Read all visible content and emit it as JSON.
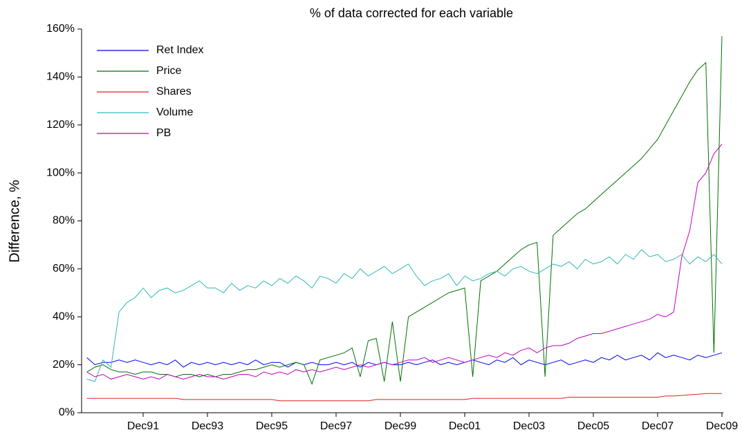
{
  "chart_data": {
    "type": "line",
    "title": "% of data corrected for each variable",
    "y_label": "Difference, %",
    "categories": [
      null,
      null,
      null,
      null,
      null,
      null,
      null,
      "Dec91",
      null,
      null,
      null,
      null,
      null,
      null,
      null,
      "Dec93",
      null,
      null,
      null,
      null,
      null,
      null,
      null,
      "Dec95",
      null,
      null,
      null,
      null,
      null,
      null,
      null,
      "Dec97",
      null,
      null,
      null,
      null,
      null,
      null,
      null,
      "Dec99",
      null,
      null,
      null,
      null,
      null,
      null,
      null,
      "Dec01",
      null,
      null,
      null,
      null,
      null,
      null,
      null,
      "Dec03",
      null,
      null,
      null,
      null,
      null,
      null,
      null,
      "Dec05",
      null,
      null,
      null,
      null,
      null,
      null,
      null,
      "Dec07",
      null,
      null,
      null,
      null,
      null,
      null,
      null,
      "Dec09"
    ],
    "ylim": [
      0,
      160
    ],
    "yticks": [
      {
        "value": 0,
        "label": "0%"
      },
      {
        "value": 20,
        "label": "20%"
      },
      {
        "value": 40,
        "label": "40%"
      },
      {
        "value": 60,
        "label": "60%"
      },
      {
        "value": 80,
        "label": "80%"
      },
      {
        "value": 100,
        "label": "100%"
      },
      {
        "value": 120,
        "label": "120%"
      },
      {
        "value": 140,
        "label": "140%"
      },
      {
        "value": 160,
        "label": "160%"
      }
    ],
    "grid": false,
    "legend": "upper left",
    "series": [
      {
        "name": "Ret Index",
        "color": "#0000ee",
        "values": [
          23,
          20,
          21,
          21,
          22,
          21,
          22,
          21,
          20,
          21,
          20,
          22,
          19,
          21,
          20,
          21,
          20,
          21,
          20,
          21,
          20,
          22,
          20,
          21,
          21,
          19,
          21,
          20,
          21,
          20,
          20,
          21,
          20,
          21,
          19,
          21,
          20,
          21,
          20,
          20,
          21,
          20,
          21,
          22,
          20,
          21,
          20,
          21,
          22,
          21,
          20,
          22,
          21,
          23,
          20,
          22,
          21,
          20,
          21,
          22,
          20,
          21,
          22,
          21,
          23,
          22,
          24,
          22,
          23,
          24,
          22,
          25,
          23,
          24,
          23,
          22,
          24,
          23,
          24,
          25
        ]
      },
      {
        "name": "Price",
        "color": "#007000",
        "values": [
          17,
          19,
          20,
          18,
          17,
          17,
          16,
          17,
          17,
          16,
          16,
          15,
          16,
          16,
          15,
          16,
          15,
          16,
          16,
          17,
          18,
          18,
          19,
          20,
          19,
          20,
          21,
          20,
          12,
          22,
          23,
          24,
          25,
          27,
          15,
          30,
          31,
          13,
          38,
          13,
          40,
          42,
          44,
          46,
          48,
          50,
          51,
          52,
          15,
          55,
          57,
          59,
          62,
          65,
          68,
          70,
          71,
          15,
          74,
          77,
          80,
          83,
          85,
          88,
          91,
          94,
          97,
          100,
          103,
          106,
          110,
          114,
          120,
          126,
          132,
          138,
          143,
          146,
          25,
          157
        ]
      },
      {
        "name": "Shares",
        "color": "#e02020",
        "values": [
          6,
          6,
          6,
          6,
          6,
          6,
          6,
          6,
          6,
          6,
          6,
          6,
          5.5,
          5.5,
          5.5,
          5.5,
          5.5,
          5.5,
          5.5,
          5.5,
          5.5,
          5.5,
          5.5,
          5.5,
          5,
          5,
          5,
          5,
          5,
          5,
          5,
          5,
          5,
          5,
          5,
          5,
          5.5,
          5.5,
          5.5,
          5.5,
          5.5,
          5.5,
          5.5,
          5.5,
          5.5,
          5.5,
          5.5,
          5.5,
          6,
          6,
          6,
          6,
          6,
          6,
          6,
          6,
          6,
          6,
          6,
          6,
          6.5,
          6.5,
          6.5,
          6.5,
          6.5,
          6.5,
          6.5,
          6.5,
          6.5,
          6.5,
          6.5,
          6.5,
          7,
          7,
          7.2,
          7.5,
          7.7,
          8,
          8,
          8
        ]
      },
      {
        "name": "Volume",
        "color": "#30b8b8",
        "values": [
          14,
          13,
          22,
          19,
          42,
          46,
          48,
          52,
          48,
          51,
          52,
          50,
          51,
          53,
          55,
          52,
          52,
          50,
          54,
          51,
          53,
          52,
          55,
          53,
          56,
          54,
          57,
          55,
          52,
          57,
          56,
          54,
          58,
          56,
          60,
          57,
          59,
          61,
          58,
          60,
          62,
          57,
          53,
          55,
          56,
          58,
          53,
          57,
          55,
          56,
          58,
          59,
          57,
          60,
          61,
          59,
          58,
          60,
          62,
          61,
          63,
          60,
          64,
          62,
          63,
          65,
          62,
          66,
          64,
          68,
          65,
          66,
          63,
          64,
          66,
          62,
          65,
          63,
          66,
          62
        ]
      },
      {
        "name": "PB",
        "color": "#c000c0",
        "values": [
          17,
          15,
          16,
          14,
          15,
          16,
          15,
          14,
          15,
          14,
          16,
          15,
          14,
          15,
          16,
          15,
          15,
          14,
          15,
          16,
          16,
          15,
          17,
          16,
          17,
          16,
          18,
          17,
          18,
          17,
          18,
          19,
          18,
          19,
          20,
          19,
          20,
          21,
          20,
          21,
          22,
          22,
          23,
          21,
          22,
          23,
          22,
          21,
          22,
          23,
          24,
          23,
          25,
          24,
          26,
          27,
          25,
          27,
          28,
          28,
          29,
          31,
          32,
          33,
          33,
          34,
          35,
          36,
          37,
          38,
          39,
          41,
          40,
          42,
          65,
          76,
          96,
          100,
          108,
          112
        ]
      }
    ]
  }
}
